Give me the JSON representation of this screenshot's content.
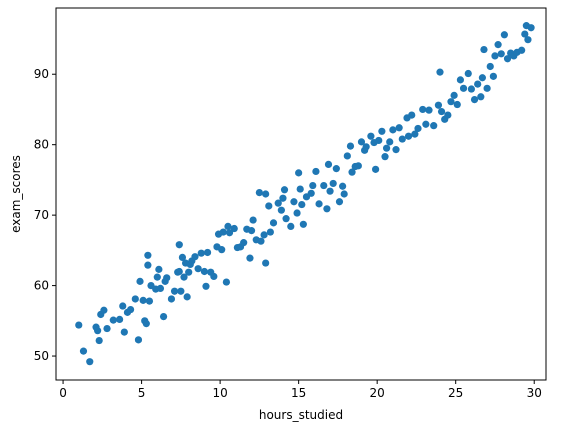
{
  "chart_data": {
    "type": "scatter",
    "x_label": "hours_studied",
    "y_label": "exam_scores",
    "color": "#1f77b4",
    "xlim": [
      -0.45,
      30.75
    ],
    "ylim": [
      46.6,
      99.4
    ],
    "xticks": [
      0,
      5,
      10,
      15,
      20,
      25,
      30
    ],
    "yticks": [
      50,
      60,
      70,
      80,
      90
    ],
    "x": [
      1.0,
      1.3,
      1.7,
      2.1,
      2.2,
      2.3,
      2.4,
      2.6,
      2.8,
      3.2,
      3.6,
      3.8,
      3.9,
      4.1,
      4.3,
      4.6,
      4.8,
      4.9,
      5.1,
      5.2,
      5.3,
      5.4,
      5.4,
      5.5,
      5.6,
      5.9,
      6.0,
      6.1,
      6.2,
      6.4,
      6.5,
      6.6,
      6.9,
      7.1,
      7.3,
      7.4,
      7.4,
      7.5,
      7.6,
      7.7,
      7.8,
      7.9,
      8.0,
      8.1,
      8.2,
      8.4,
      8.6,
      8.8,
      9.0,
      9.1,
      9.2,
      9.4,
      9.6,
      9.8,
      9.9,
      10.1,
      10.2,
      10.4,
      10.5,
      10.6,
      10.9,
      11.1,
      11.3,
      11.5,
      11.7,
      11.9,
      12.0,
      12.1,
      12.3,
      12.5,
      12.6,
      12.8,
      12.9,
      12.9,
      13.1,
      13.2,
      13.4,
      13.7,
      13.9,
      14.0,
      14.1,
      14.2,
      14.5,
      14.7,
      14.9,
      15.0,
      15.1,
      15.2,
      15.3,
      15.5,
      15.8,
      15.9,
      16.1,
      16.3,
      16.6,
      16.8,
      16.9,
      17.0,
      17.2,
      17.4,
      17.6,
      17.8,
      17.9,
      18.1,
      18.3,
      18.4,
      18.6,
      18.8,
      19.0,
      19.2,
      19.3,
      19.6,
      19.8,
      19.9,
      20.1,
      20.3,
      20.5,
      20.6,
      20.8,
      21.0,
      21.2,
      21.4,
      21.6,
      21.9,
      22.0,
      22.2,
      22.4,
      22.6,
      22.9,
      23.1,
      23.3,
      23.6,
      23.9,
      24.0,
      24.1,
      24.3,
      24.5,
      24.7,
      24.9,
      25.1,
      25.3,
      25.5,
      25.8,
      26.0,
      26.2,
      26.4,
      26.6,
      26.7,
      26.8,
      27.0,
      27.2,
      27.4,
      27.5,
      27.7,
      27.9,
      28.1,
      28.3,
      28.5,
      28.7,
      28.9,
      29.2,
      29.4,
      29.5,
      29.6,
      29.8
    ],
    "values": [
      54.4,
      50.7,
      49.2,
      54.1,
      53.6,
      52.2,
      55.9,
      56.5,
      53.9,
      55.1,
      55.2,
      57.1,
      53.4,
      56.2,
      56.6,
      58.1,
      52.3,
      60.6,
      57.9,
      55.0,
      54.6,
      62.9,
      64.3,
      57.8,
      60.0,
      59.5,
      61.2,
      62.3,
      59.6,
      55.6,
      60.6,
      61.1,
      58.1,
      59.2,
      61.9,
      62.0,
      65.8,
      59.2,
      64.0,
      61.2,
      63.2,
      58.4,
      61.9,
      63.0,
      63.5,
      64.1,
      62.4,
      64.6,
      62.0,
      59.9,
      64.7,
      61.9,
      61.3,
      65.5,
      67.3,
      65.1,
      67.6,
      60.5,
      68.4,
      67.5,
      68.1,
      65.4,
      65.5,
      66.1,
      68.0,
      63.9,
      67.8,
      69.3,
      66.5,
      73.2,
      66.3,
      67.2,
      63.2,
      73.0,
      71.3,
      67.6,
      68.9,
      71.7,
      70.7,
      72.4,
      73.6,
      69.5,
      68.4,
      71.9,
      70.3,
      76.0,
      73.7,
      71.5,
      68.7,
      72.6,
      73.1,
      74.2,
      76.2,
      71.6,
      74.2,
      70.9,
      77.2,
      73.4,
      74.5,
      76.6,
      71.9,
      74.1,
      73.0,
      78.4,
      79.8,
      76.1,
      76.9,
      77.0,
      80.4,
      79.2,
      79.7,
      81.2,
      80.3,
      76.5,
      80.6,
      81.9,
      78.3,
      79.5,
      80.4,
      82.1,
      79.3,
      82.4,
      80.8,
      83.8,
      81.2,
      84.2,
      81.5,
      82.3,
      85.0,
      82.9,
      84.9,
      82.7,
      85.6,
      90.3,
      84.7,
      83.6,
      84.2,
      86.1,
      87.0,
      85.7,
      89.2,
      88.0,
      90.1,
      87.9,
      86.4,
      88.6,
      86.8,
      89.5,
      93.5,
      88.0,
      91.1,
      89.7,
      92.6,
      94.2,
      92.9,
      95.6,
      92.2,
      93.0,
      92.6,
      93.1,
      93.4,
      95.7,
      96.9,
      94.9,
      96.6
    ]
  }
}
